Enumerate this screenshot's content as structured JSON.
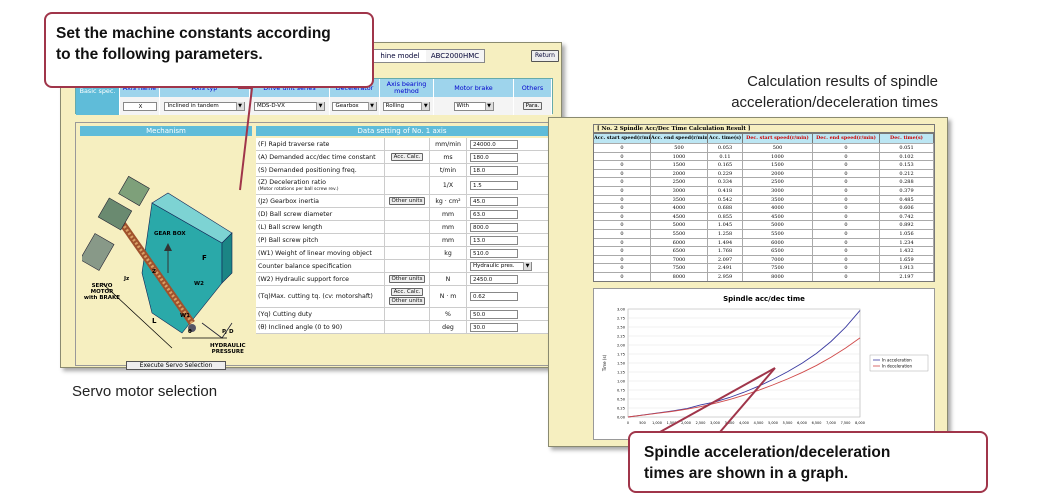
{
  "callouts": {
    "top": [
      "Set the machine constants according",
      "to the following parameters."
    ],
    "bottom": [
      "Spindle acceleration/deceleration",
      "times are shown in a graph."
    ]
  },
  "captions": {
    "left": "Servo motor selection",
    "right": [
      "Calculation results of spindle",
      "acceleration/deceleration times"
    ]
  },
  "servo_window": {
    "machine_label": "hine model",
    "machine_value": "ABC2000HMC",
    "return_button": "Return",
    "basic": {
      "row_header": "No. 1 axis Basic spec.",
      "headers": [
        "Axis name",
        "Axis typ",
        "Drive unit series",
        "Decelerator",
        "Axis bearing method",
        "Motor brake",
        "Others"
      ],
      "values": {
        "axis_name": "X",
        "axis_type": "Inclined in tandem",
        "drive_unit": "MDS-D-VX",
        "decelerator": "Gearbox",
        "bearing": "Rolling",
        "motor_brake": "With",
        "others_button": "Para."
      }
    },
    "mechanism_header": "Mechanism",
    "data_header": "Data setting of No. 1 axis",
    "mech_labels": {
      "gearbox": "GEAR BOX",
      "servo": "SERVO\nMOTOR\nwith BRAKE",
      "hydraulic": "HYDRAULIC\nPRESSURE",
      "f": "F",
      "jz": "Jz",
      "z": "Z",
      "w2": "W2",
      "w1": "W1",
      "l": "L",
      "theta": "θ",
      "pd": "P, D"
    },
    "execute_button": "Execute Servo Selection",
    "rows": [
      {
        "param": "(F) Rapid traverse rate",
        "button": "",
        "unit": "mm/min",
        "value": "24000.0"
      },
      {
        "param": "(A) Demanded acc/dec time constant",
        "button": "Acc. Calc.",
        "unit": "ms",
        "value": "180.0"
      },
      {
        "param": "(S) Demanded positioning freq.",
        "button": "",
        "unit": "t/min",
        "value": "18.0"
      },
      {
        "param": "(Z) Deceleration ratio",
        "sub": "(Motor rotations per ball screw rev.)",
        "button": "",
        "unit": "1/X",
        "value": "1.5"
      },
      {
        "param": "(Jz) Gearbox inertia",
        "button": "Other units",
        "unit": "kg · cm²",
        "value": "45.0"
      },
      {
        "param": "(D) Ball screw diameter",
        "button": "",
        "unit": "mm",
        "value": "63.0"
      },
      {
        "param": "(L) Ball screw length",
        "button": "",
        "unit": "mm",
        "value": "800.0"
      },
      {
        "param": "(P) Ball screw pitch",
        "button": "",
        "unit": "mm",
        "value": "13.0"
      },
      {
        "param": "(W1) Weight of linear moving object",
        "button": "",
        "unit": "kg",
        "value": "510.0"
      },
      {
        "param": "Counter balance specification",
        "button": "",
        "unit": "",
        "value": "Hydraulic pres.",
        "select": true
      },
      {
        "param": "(W2) Hydraulic support force",
        "button": "Other units",
        "unit": "N",
        "value": "2450.0"
      },
      {
        "param": "(Tq)Max. cutting tq. (cv: motorshaft)",
        "button": "Acc. Calc.",
        "button2": "Other units",
        "unit": "N · m",
        "value": "0.62"
      },
      {
        "param": "(Yq) Cutting duty",
        "button": "",
        "unit": "%",
        "value": "50.0"
      },
      {
        "param": "(θ) Inclined angle (0 to 90)",
        "button": "",
        "unit": "deg",
        "value": "30.0"
      }
    ]
  },
  "results_window": {
    "title": "[ No. 2 Spindle Acc/Dec Time Calculation Result ]",
    "headers": [
      "Acc. start speed(r/min)",
      "Acc. end speed(r/min)",
      "Acc. time(s)",
      "Dec. start speed(r/min)",
      "Dec. end speed(r/min)",
      "Dec. time(s)"
    ],
    "rows": [
      [
        "0",
        "500",
        "0.053",
        "500",
        "0",
        "0.051"
      ],
      [
        "0",
        "1000",
        "0.11",
        "1000",
        "0",
        "0.102"
      ],
      [
        "0",
        "1500",
        "0.165",
        "1500",
        "0",
        "0.153"
      ],
      [
        "0",
        "2000",
        "0.229",
        "2000",
        "0",
        "0.212"
      ],
      [
        "0",
        "2500",
        "0.334",
        "2500",
        "0",
        "0.288"
      ],
      [
        "0",
        "3000",
        "0.418",
        "3000",
        "0",
        "0.379"
      ],
      [
        "0",
        "3500",
        "0.542",
        "3500",
        "0",
        "0.485"
      ],
      [
        "0",
        "4000",
        "0.688",
        "4000",
        "0",
        "0.606"
      ],
      [
        "0",
        "4500",
        "0.855",
        "4500",
        "0",
        "0.742"
      ],
      [
        "0",
        "5000",
        "1.045",
        "5000",
        "0",
        "0.892"
      ],
      [
        "0",
        "5500",
        "1.258",
        "5500",
        "0",
        "1.056"
      ],
      [
        "0",
        "6000",
        "1.494",
        "6000",
        "0",
        "1.234"
      ],
      [
        "0",
        "6500",
        "1.768",
        "6500",
        "0",
        "1.432"
      ],
      [
        "0",
        "7000",
        "2.097",
        "7000",
        "0",
        "1.659"
      ],
      [
        "0",
        "7500",
        "2.491",
        "7500",
        "0",
        "1.913"
      ],
      [
        "0",
        "8000",
        "2.959",
        "8000",
        "0",
        "2.197"
      ]
    ]
  },
  "chart_data": {
    "type": "line",
    "title": "Spindle acc/dec time",
    "xlabel": "",
    "ylabel": "Time (s)",
    "x": [
      0,
      500,
      1000,
      1500,
      2000,
      2500,
      3000,
      3500,
      4000,
      4500,
      5000,
      5500,
      6000,
      6500,
      7000,
      7500,
      8000
    ],
    "x_ticks": [
      "0",
      "500",
      "1,000",
      "1,500",
      "2,000",
      "2,500",
      "3,000",
      "3,500",
      "4,000",
      "4,500",
      "5,000",
      "5,500",
      "6,000",
      "6,500",
      "7,000",
      "7,500",
      "8,000"
    ],
    "y_ticks": [
      "0.00",
      "0.25",
      "0.50",
      "0.75",
      "1.00",
      "1.25",
      "1.50",
      "1.75",
      "2.00",
      "2.25",
      "2.50",
      "2.75",
      "3.00"
    ],
    "xlim": [
      0,
      8000
    ],
    "ylim": [
      0,
      3.0
    ],
    "legend_position": "right",
    "series": [
      {
        "name": "In acceleration",
        "color": "#3a3aa0",
        "values": [
          0,
          0.053,
          0.11,
          0.165,
          0.229,
          0.334,
          0.418,
          0.542,
          0.688,
          0.855,
          1.045,
          1.258,
          1.494,
          1.768,
          2.097,
          2.491,
          2.959
        ]
      },
      {
        "name": "In deceleration",
        "color": "#d04a4a",
        "values": [
          0,
          0.051,
          0.102,
          0.153,
          0.212,
          0.288,
          0.379,
          0.485,
          0.606,
          0.742,
          0.892,
          1.056,
          1.234,
          1.432,
          1.659,
          1.913,
          2.197
        ]
      }
    ]
  }
}
